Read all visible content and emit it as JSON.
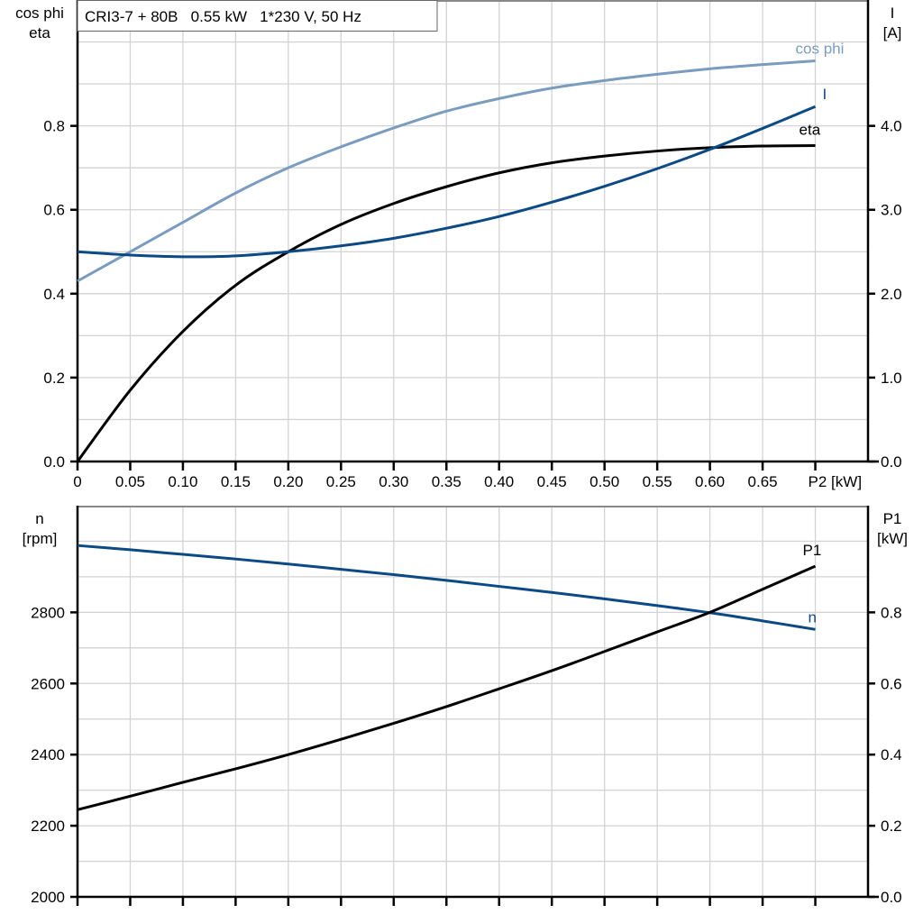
{
  "chart_data": [
    {
      "type": "line",
      "title": "CRI3-7 + 80B   0.55 kW   1*230 V, 50 Hz",
      "xlabel": "P2 [kW]",
      "ylabel_left": [
        "cos phi",
        "eta"
      ],
      "ylabel_right": [
        "I",
        "[A]"
      ],
      "xlim": [
        0,
        0.75
      ],
      "ylim_left": [
        0,
        1.1
      ],
      "ylim_right": [
        0,
        5.5
      ],
      "x_ticks": [
        "0",
        "0.05",
        "0.10",
        "0.15",
        "0.20",
        "0.25",
        "0.30",
        "0.35",
        "0.40",
        "0.45",
        "0.50",
        "0.55",
        "0.60",
        "0.65",
        "P2 [kW]"
      ],
      "y_ticks_left": [
        "0.0",
        "0.2",
        "0.4",
        "0.6",
        "0.8"
      ],
      "y_ticks_right": [
        "0.0",
        "1.0",
        "2.0",
        "3.0",
        "4.0"
      ],
      "grid": true,
      "x": [
        0,
        0.05,
        0.1,
        0.15,
        0.2,
        0.25,
        0.3,
        0.35,
        0.4,
        0.45,
        0.5,
        0.55,
        0.6,
        0.65,
        0.7
      ],
      "series": [
        {
          "name": "cos phi",
          "axis": "left",
          "color": "#7a9cbf",
          "values": [
            0.43,
            0.5,
            0.57,
            0.64,
            0.7,
            0.75,
            0.795,
            0.835,
            0.865,
            0.89,
            0.908,
            0.923,
            0.936,
            0.946,
            0.955
          ]
        },
        {
          "name": "eta",
          "axis": "left",
          "color": "#000000",
          "values": [
            0,
            0.17,
            0.31,
            0.42,
            0.5,
            0.565,
            0.615,
            0.655,
            0.688,
            0.712,
            0.728,
            0.74,
            0.748,
            0.752,
            0.753
          ]
        },
        {
          "name": "I",
          "axis": "right",
          "color": "#0b4a85",
          "values": [
            2.5,
            2.46,
            2.44,
            2.45,
            2.5,
            2.57,
            2.66,
            2.78,
            2.92,
            3.09,
            3.28,
            3.49,
            3.72,
            3.97,
            4.23
          ]
        }
      ]
    },
    {
      "type": "line",
      "ylabel_left": [
        "n",
        "[rpm]"
      ],
      "ylabel_right": [
        "P1",
        "[kW]"
      ],
      "xlim": [
        0,
        0.75
      ],
      "ylim_left": [
        2000,
        3100
      ],
      "ylim_right": [
        0,
        1.1
      ],
      "y_ticks_left": [
        "2000",
        "2200",
        "2400",
        "2600",
        "2800"
      ],
      "y_ticks_right": [
        "0.0",
        "0.2",
        "0.4",
        "0.6",
        "0.8"
      ],
      "grid": true,
      "x": [
        0,
        0.05,
        0.1,
        0.15,
        0.2,
        0.25,
        0.3,
        0.35,
        0.4,
        0.45,
        0.5,
        0.55,
        0.6,
        0.65,
        0.7
      ],
      "series": [
        {
          "name": "n",
          "axis": "left",
          "color": "#0b4a85",
          "values": [
            2988,
            2976,
            2963,
            2950,
            2936,
            2921,
            2906,
            2890,
            2873,
            2856,
            2838,
            2819,
            2799,
            2776,
            2752
          ]
        },
        {
          "name": "P1",
          "axis": "right",
          "color": "#000000",
          "values": [
            0.245,
            0.283,
            0.322,
            0.36,
            0.4,
            0.443,
            0.488,
            0.535,
            0.585,
            0.636,
            0.69,
            0.745,
            0.8,
            0.865,
            0.93
          ]
        }
      ]
    }
  ]
}
